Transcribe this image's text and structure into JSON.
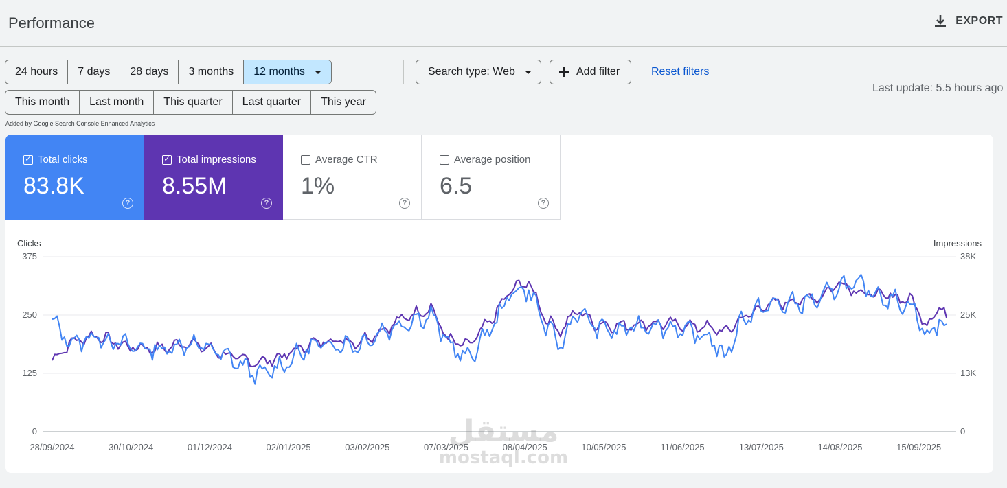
{
  "header": {
    "title": "Performance",
    "export_label": "EXPORT"
  },
  "date_ranges": [
    "24 hours",
    "7 days",
    "28 days",
    "3 months",
    "12 months"
  ],
  "date_ranges_selected": "12 months",
  "period_ranges": [
    "This month",
    "Last month",
    "This quarter",
    "Last quarter",
    "This year"
  ],
  "filters": {
    "search_type": "Search type: Web",
    "add_filter": "Add filter",
    "reset": "Reset filters"
  },
  "last_update": "Last update: 5.5 hours ago",
  "credit": "Added by Google Search Console Enhanced Analytics",
  "metrics": {
    "clicks": {
      "label": "Total clicks",
      "value": "83.8K",
      "checked": true,
      "color": "#4285f4"
    },
    "impressions": {
      "label": "Total impressions",
      "value": "8.55M",
      "checked": true,
      "color": "#5e35b1"
    },
    "ctr": {
      "label": "Average CTR",
      "value": "1%",
      "checked": false
    },
    "position": {
      "label": "Average position",
      "value": "6.5",
      "checked": false
    }
  },
  "chart_data": {
    "type": "line",
    "x_labels": [
      "28/09/2024",
      "30/10/2024",
      "01/12/2024",
      "02/01/2025",
      "03/02/2025",
      "07/03/2025",
      "08/04/2025",
      "10/05/2025",
      "11/06/2025",
      "13/07/2025",
      "14/08/2025",
      "15/09/2025"
    ],
    "y_left": {
      "label": "Clicks",
      "ticks": [
        "375",
        "250",
        "125",
        "0"
      ],
      "range": [
        0,
        375
      ]
    },
    "y_right": {
      "label": "Impressions",
      "ticks": [
        "38K",
        "25K",
        "13K",
        "0"
      ],
      "range": [
        0,
        38000
      ]
    },
    "series": [
      {
        "name": "Clicks",
        "color": "#4285f4",
        "anchors": [
          [
            0,
            235
          ],
          [
            8,
            190
          ],
          [
            18,
            205
          ],
          [
            30,
            185
          ],
          [
            45,
            175
          ],
          [
            55,
            190
          ],
          [
            64,
            180
          ],
          [
            75,
            150
          ],
          [
            85,
            120
          ],
          [
            95,
            145
          ],
          [
            105,
            180
          ],
          [
            115,
            190
          ],
          [
            125,
            185
          ],
          [
            135,
            215
          ],
          [
            145,
            235
          ],
          [
            155,
            250
          ],
          [
            162,
            190
          ],
          [
            170,
            155
          ],
          [
            180,
            225
          ],
          [
            188,
            300
          ],
          [
            195,
            305
          ],
          [
            202,
            225
          ],
          [
            208,
            185
          ],
          [
            215,
            260
          ],
          [
            222,
            225
          ],
          [
            232,
            215
          ],
          [
            242,
            230
          ],
          [
            252,
            225
          ],
          [
            262,
            210
          ],
          [
            270,
            200
          ],
          [
            275,
            155
          ],
          [
            282,
            240
          ],
          [
            292,
            270
          ],
          [
            305,
            275
          ],
          [
            315,
            285
          ],
          [
            322,
            315
          ],
          [
            332,
            310
          ],
          [
            342,
            285
          ],
          [
            352,
            270
          ],
          [
            358,
            200
          ],
          [
            363,
            240
          ],
          [
            366,
            220
          ]
        ]
      },
      {
        "name": "Impressions",
        "color": "#5e35b1",
        "anchors": [
          [
            0,
            15500
          ],
          [
            8,
            19500
          ],
          [
            18,
            21000
          ],
          [
            30,
            18500
          ],
          [
            45,
            18000
          ],
          [
            55,
            19500
          ],
          [
            64,
            18000
          ],
          [
            75,
            16000
          ],
          [
            85,
            15000
          ],
          [
            95,
            16500
          ],
          [
            105,
            19000
          ],
          [
            115,
            20000
          ],
          [
            125,
            19500
          ],
          [
            135,
            22000
          ],
          [
            145,
            25000
          ],
          [
            155,
            27000
          ],
          [
            162,
            20000
          ],
          [
            170,
            18500
          ],
          [
            180,
            24500
          ],
          [
            188,
            31000
          ],
          [
            195,
            32500
          ],
          [
            202,
            24500
          ],
          [
            208,
            22000
          ],
          [
            215,
            26500
          ],
          [
            222,
            23500
          ],
          [
            232,
            23000
          ],
          [
            242,
            23500
          ],
          [
            252,
            23500
          ],
          [
            262,
            23000
          ],
          [
            270,
            22500
          ],
          [
            275,
            21500
          ],
          [
            282,
            24500
          ],
          [
            292,
            27500
          ],
          [
            305,
            28500
          ],
          [
            315,
            29500
          ],
          [
            322,
            32500
          ],
          [
            332,
            30000
          ],
          [
            342,
            29500
          ],
          [
            352,
            28500
          ],
          [
            358,
            23000
          ],
          [
            363,
            27500
          ],
          [
            366,
            24500
          ]
        ]
      }
    ]
  },
  "watermark": {
    "arabic": "مستقل",
    "latin": "mostaql.com"
  }
}
